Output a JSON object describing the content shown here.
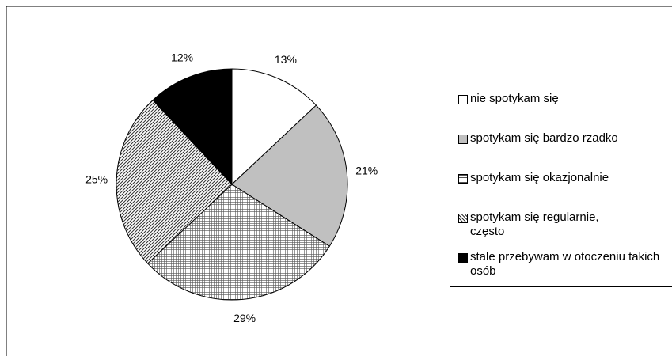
{
  "chart_data": {
    "type": "pie",
    "categories": [
      "nie spotykam się",
      "spotykam się bardzo rzadko",
      "spotykam się okazjonalnie",
      "spotykam się regularnie, często",
      "stale przebywam w otoczeniu takich osób"
    ],
    "values": [
      13,
      21,
      29,
      25,
      12
    ],
    "value_labels": [
      "13%",
      "21%",
      "29%",
      "25%",
      "12%"
    ],
    "colors": [
      "#ffffff",
      "#c0c0c0",
      "#808080",
      "#ffffff",
      "#000000"
    ],
    "patterns": [
      "solid",
      "solid",
      "crosshatch",
      "diagonal",
      "solid"
    ],
    "legend": "right"
  }
}
